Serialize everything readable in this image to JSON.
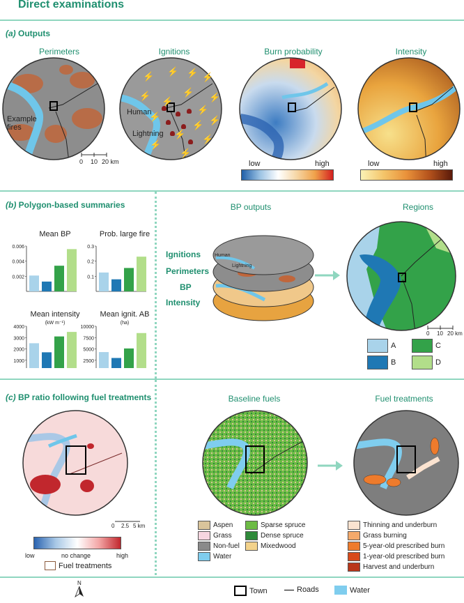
{
  "title": "Direct examinations",
  "section_a": {
    "letter": "(a)",
    "title": "Outputs",
    "panels": [
      "Perimeters",
      "Ignitions",
      "Burn probability",
      "Intensity"
    ],
    "example_fires": "Example fires",
    "human": "Human",
    "lightning": "Lightning",
    "scale": [
      "0",
      "10",
      "20 km"
    ],
    "bp_low": "low",
    "bp_high": "high",
    "int_low": "low",
    "int_high": "high"
  },
  "section_b": {
    "letter": "(b)",
    "title": "Polygon-based summaries",
    "bp_outputs": "BP outputs",
    "regions": "Regions",
    "layers": [
      "Ignitions",
      "Perimeters",
      "BP",
      "Intensity"
    ],
    "human": "Human",
    "lightning": "Lightning",
    "scale": [
      "0",
      "10",
      "20 km"
    ],
    "region_legend": [
      {
        "label": "A",
        "color": "#a9d3ea"
      },
      {
        "label": "C",
        "color": "#33a249"
      },
      {
        "label": "B",
        "color": "#1f78b4"
      },
      {
        "label": "D",
        "color": "#b2de8a"
      }
    ]
  },
  "chart_data": [
    {
      "type": "bar",
      "title": "Mean BP",
      "categories": [
        "A",
        "B",
        "C",
        "D"
      ],
      "values": [
        0.0021,
        0.0013,
        0.0034,
        0.0056
      ],
      "ylim": [
        0,
        0.006
      ],
      "yticks": [
        "0.002",
        "0.004",
        "0.006"
      ],
      "colors": [
        "#a9d3ea",
        "#1f78b4",
        "#33a249",
        "#b2de8a"
      ]
    },
    {
      "type": "bar",
      "title": "Prob. large fire",
      "categories": [
        "A",
        "B",
        "C",
        "D"
      ],
      "values": [
        0.125,
        0.08,
        0.155,
        0.23
      ],
      "ylim": [
        0,
        0.3
      ],
      "yticks": [
        "0.1",
        "0.2",
        "0.3"
      ],
      "colors": [
        "#a9d3ea",
        "#1f78b4",
        "#33a249",
        "#b2de8a"
      ]
    },
    {
      "type": "bar",
      "title": "Mean intensity",
      "unit": "(kW m⁻¹)",
      "categories": [
        "A",
        "B",
        "C",
        "D"
      ],
      "values": [
        2500,
        1700,
        3100,
        3500
      ],
      "ylim": [
        0,
        4000
      ],
      "yticks": [
        "1000",
        "2000",
        "3000",
        "4000"
      ],
      "colors": [
        "#a9d3ea",
        "#1f78b4",
        "#33a249",
        "#b2de8a"
      ]
    },
    {
      "type": "bar",
      "title": "Mean ignit. AB",
      "unit": "(ha)",
      "categories": [
        "A",
        "B",
        "C",
        "D"
      ],
      "values": [
        4300,
        3000,
        5100,
        8500
      ],
      "ylim": [
        0,
        10000
      ],
      "yticks": [
        "2500",
        "5000",
        "7500",
        "10000"
      ],
      "colors": [
        "#a9d3ea",
        "#1f78b4",
        "#33a249",
        "#b2de8a"
      ]
    }
  ],
  "section_c": {
    "letter": "(c)",
    "title": "BP ratio following fuel treatments",
    "baseline": "Baseline fuels",
    "treatments": "Fuel treatments",
    "scale": [
      "0",
      "2.5",
      "5 km"
    ],
    "ratio_low": "low",
    "ratio_mid": "no change",
    "ratio_high": "high",
    "fuel_treatments_label": "Fuel treatments",
    "fuels": [
      {
        "label": "Aspen",
        "color": "#d9c49b"
      },
      {
        "label": "Sparse spruce",
        "color": "#6dbb45"
      },
      {
        "label": "Grass",
        "color": "#f6d6e0"
      },
      {
        "label": "Dense spruce",
        "color": "#2f8a3a"
      },
      {
        "label": "Non-fuel",
        "color": "#8a8a8a"
      },
      {
        "label": "Mixedwood",
        "color": "#f3d28b"
      },
      {
        "label": "Water",
        "color": "#7fcdee"
      }
    ],
    "treatment_types": [
      {
        "label": "Thinning and underburn",
        "color": "#fbe3d0"
      },
      {
        "label": "Grass burning",
        "color": "#f4a96b"
      },
      {
        "label": "5-year-old prescribed burn",
        "color": "#ee7b2c"
      },
      {
        "label": "1-year-old prescribed burn",
        "color": "#d84a1b"
      },
      {
        "label": "Harvest and underburn",
        "color": "#b9361a"
      }
    ]
  },
  "footer": {
    "north": "N",
    "town": "Town",
    "roads": "Roads",
    "water": "Water"
  }
}
